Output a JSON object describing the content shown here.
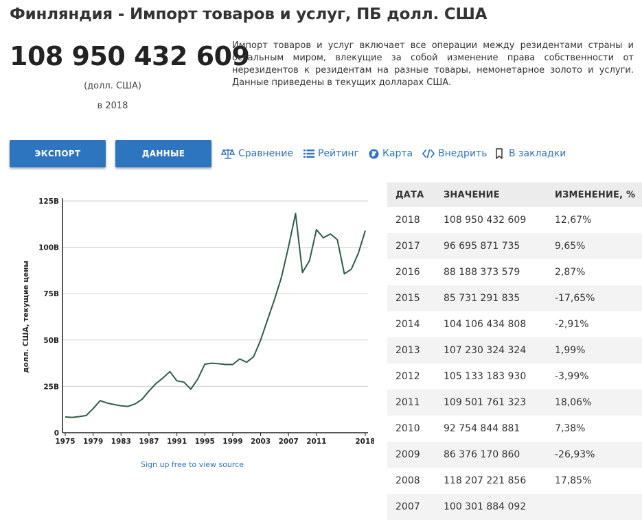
{
  "page": {
    "title": "Финляндия - Импорт товаров и услуг, ПБ долл. США",
    "value": "108 950 432 609",
    "unit": "(долл. США)",
    "year": "в 2018",
    "description": "Импорт товаров и услуг включает все операции между резидентами страны и остальным миром, влекущие за собой изменение права собственности от нерезидентов к резидентам на разные товары, немонетарное золото и услуги. Данные приведены в текущих долларах США."
  },
  "actions": {
    "export_label": "ЭКСПОРТ",
    "data_label": "ДАННЫЕ",
    "links": [
      {
        "label": "Сравнение",
        "icon": "scales-icon"
      },
      {
        "label": "Рейтинг",
        "icon": "list-icon"
      },
      {
        "label": "Карта",
        "icon": "globe-icon"
      },
      {
        "label": "Внедрить",
        "icon": "code-icon"
      },
      {
        "label": "В закладки",
        "icon": "bookmark-icon"
      }
    ]
  },
  "colors": {
    "accent": "#2d75bf",
    "line": "#2e5c45"
  },
  "chart_data": {
    "type": "line",
    "ylabel": "долл. США, текущие цены",
    "ylim": [
      0,
      125
    ],
    "yticks": [
      "0",
      "25B",
      "50B",
      "75B",
      "100B",
      "125B"
    ],
    "xticks": [
      "1975",
      "1979",
      "1983",
      "1987",
      "1991",
      "1995",
      "1999",
      "2003",
      "2007",
      "2011",
      "2018"
    ],
    "x": [
      1975,
      1976,
      1977,
      1978,
      1979,
      1980,
      1981,
      1982,
      1983,
      1984,
      1985,
      1986,
      1987,
      1988,
      1989,
      1990,
      1991,
      1992,
      1993,
      1994,
      1995,
      1996,
      1997,
      1998,
      1999,
      2000,
      2001,
      2002,
      2003,
      2004,
      2005,
      2006,
      2007,
      2008,
      2009,
      2010,
      2011,
      2012,
      2013,
      2014,
      2015,
      2016,
      2017,
      2018
    ],
    "y": [
      8.5,
      8.3,
      8.7,
      9.3,
      13,
      17.3,
      16,
      15.2,
      14.5,
      14.2,
      15.5,
      18,
      22.5,
      26.5,
      29.5,
      33,
      28,
      27.3,
      23.5,
      29,
      37,
      37.5,
      37.2,
      36.8,
      36.8,
      39.8,
      38,
      41,
      50,
      61,
      72,
      84,
      100.3,
      118.2,
      86.4,
      92.8,
      109.5,
      105.1,
      107.2,
      104.1,
      85.7,
      88.2,
      96.7,
      109.0
    ],
    "source_label": "Sign up free to view source"
  },
  "table": {
    "headers": [
      "ДАТА",
      "ЗНАЧЕНИЕ",
      "ИЗМЕНЕНИЕ, %"
    ],
    "rows": [
      [
        "2018",
        "108 950 432 609",
        "12,67%"
      ],
      [
        "2017",
        "96 695 871 735",
        "9,65%"
      ],
      [
        "2016",
        "88 188 373 579",
        "2,87%"
      ],
      [
        "2015",
        "85 731 291 835",
        "-17,65%"
      ],
      [
        "2014",
        "104 106 434 808",
        "-2,91%"
      ],
      [
        "2013",
        "107 230 324 324",
        "1,99%"
      ],
      [
        "2012",
        "105 133 183 930",
        "-3,99%"
      ],
      [
        "2011",
        "109 501 761 323",
        "18,06%"
      ],
      [
        "2010",
        "92 754 844 881",
        "7,38%"
      ],
      [
        "2009",
        "86 376 170 860",
        "-26,93%"
      ],
      [
        "2008",
        "118 207 221 856",
        "17,85%"
      ],
      [
        "2007",
        "100 301 884 092",
        ""
      ]
    ]
  }
}
